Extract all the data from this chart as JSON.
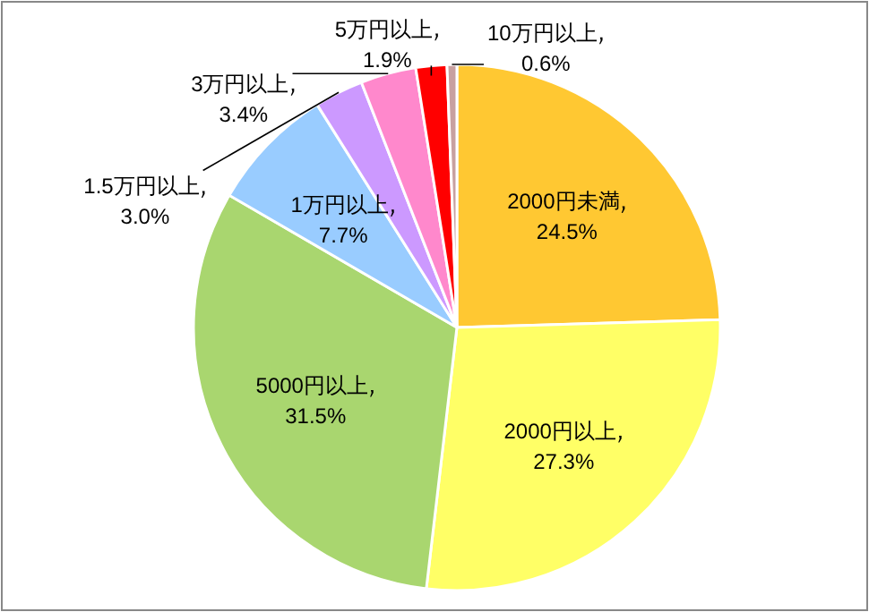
{
  "chart_data": {
    "type": "pie",
    "categories": [
      "2000円未満",
      "2000円以上",
      "5000円以上",
      "1万円以上",
      "1.5万円以上",
      "3万円以上",
      "5万円以上",
      "10万円以上"
    ],
    "values": [
      24.5,
      27.3,
      31.5,
      7.7,
      3.0,
      3.4,
      1.9,
      0.6
    ],
    "value_labels": [
      "24.5%",
      "27.3%",
      "31.5%",
      "7.7%",
      "3.0%",
      "3.4%",
      "1.9%",
      "0.6%"
    ],
    "colors": [
      "#ffc832",
      "#ffff66",
      "#a9d66f",
      "#99ccff",
      "#cc99ff",
      "#ff88cc",
      "#ff0000",
      "#c8a0a0"
    ]
  }
}
